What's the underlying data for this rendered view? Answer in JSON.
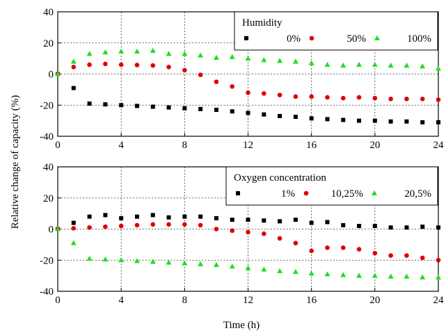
{
  "chart_data": {
    "type": "scatter",
    "ylabel": "Relative change of capacity (%)",
    "xlabel": "Time (h)",
    "panels": [
      {
        "id": "top",
        "legend_title": "Humidity",
        "legend_position": "top-right",
        "xlim": [
          0,
          24
        ],
        "ylim": [
          -40,
          40
        ],
        "xticks": [
          0,
          4,
          8,
          12,
          16,
          20,
          24
        ],
        "yticks": [
          -40,
          -20,
          0,
          20,
          40
        ],
        "grid": "dotted",
        "x": [
          0,
          1,
          2,
          3,
          4,
          5,
          6,
          7,
          8,
          9,
          10,
          11,
          12,
          13,
          14,
          15,
          16,
          17,
          18,
          19,
          20,
          21,
          22,
          23,
          24
        ],
        "series": [
          {
            "name": "0%",
            "marker": "square",
            "color": "#000000",
            "values": [
              0,
              -9,
              -19,
              -19.5,
              -20,
              -20.5,
              -21,
              -21.5,
              -22,
              -22.5,
              -23,
              -24,
              -25,
              -26,
              -27,
              -27.5,
              -28.5,
              -29,
              -29.5,
              -30,
              -30,
              -30.5,
              -30.5,
              -31,
              -31
            ]
          },
          {
            "name": "50%",
            "marker": "circle",
            "color": "#e00000",
            "values": [
              0,
              4.5,
              6,
              6.5,
              6,
              5.8,
              5.5,
              4.5,
              2.5,
              -0.5,
              -5,
              -8,
              -12,
              -12.5,
              -13.5,
              -14.5,
              -14.5,
              -15,
              -15.5,
              -15,
              -15.5,
              -16,
              -16,
              -16,
              -16.5
            ]
          },
          {
            "name": "100%",
            "marker": "triangle",
            "color": "#22dd22",
            "values": [
              0,
              8,
              13,
              14,
              14.5,
              14.5,
              15,
              13,
              13,
              12,
              10.5,
              11,
              10,
              9,
              8.5,
              8,
              7,
              6,
              5.5,
              6,
              6,
              5.5,
              5.5,
              5,
              3.5
            ]
          }
        ]
      },
      {
        "id": "bottom",
        "legend_title": "Oxygen concentration",
        "legend_position": "top-right",
        "xlim": [
          0,
          24
        ],
        "ylim": [
          -40,
          40
        ],
        "xticks": [
          0,
          4,
          8,
          12,
          16,
          20,
          24
        ],
        "yticks": [
          -40,
          -20,
          0,
          20,
          40
        ],
        "grid": "dotted",
        "x": [
          0,
          1,
          2,
          3,
          4,
          5,
          6,
          7,
          8,
          9,
          10,
          11,
          12,
          13,
          14,
          15,
          16,
          17,
          18,
          19,
          20,
          21,
          22,
          23,
          24
        ],
        "series": [
          {
            "name": "1%",
            "marker": "square",
            "color": "#000000",
            "values": [
              0,
              4,
              8,
              9,
              7,
              8,
              9,
              7.5,
              8,
              8,
              7,
              6,
              6,
              5.5,
              5,
              6,
              4,
              4.5,
              2.5,
              2,
              2,
              1,
              1,
              1.5,
              1
            ]
          },
          {
            "name": "10,25%",
            "marker": "circle",
            "color": "#e00000",
            "values": [
              0,
              0.5,
              1,
              1.5,
              2,
              2.5,
              3,
              3,
              3,
              2.5,
              0,
              -1,
              -2,
              -3,
              -6,
              -9,
              -14,
              -12,
              -12,
              -13,
              -15.5,
              -17,
              -17,
              -18.5,
              -20
            ]
          },
          {
            "name": "20,5%",
            "marker": "triangle",
            "color": "#22dd22",
            "values": [
              0,
              -9,
              -19,
              -19.5,
              -20,
              -20.5,
              -21,
              -21.5,
              -22,
              -22.5,
              -23,
              -24,
              -25,
              -26,
              -27,
              -27.5,
              -28.5,
              -29,
              -29.5,
              -30,
              -30,
              -30.5,
              -30.5,
              -31,
              -31
            ]
          }
        ]
      }
    ]
  }
}
